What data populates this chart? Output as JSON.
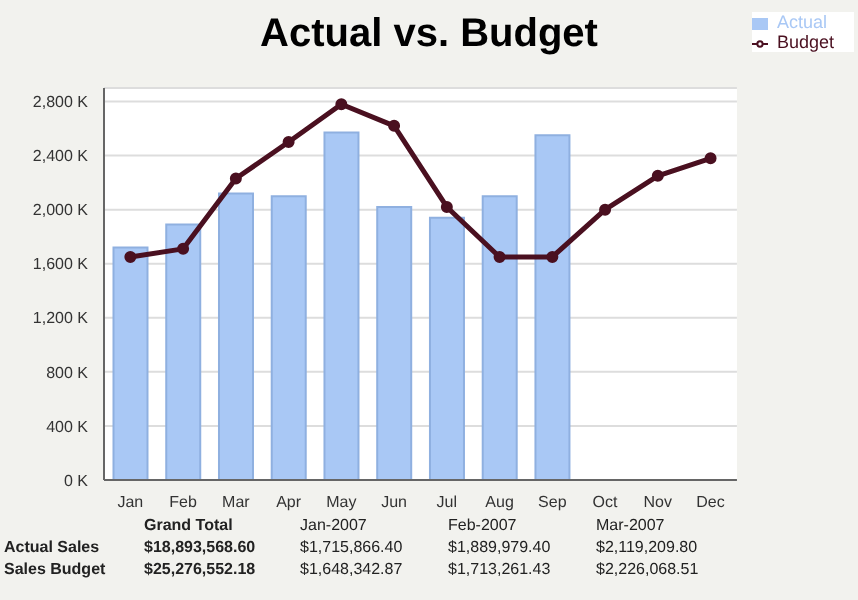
{
  "chart_data": {
    "type": "bar",
    "title": "Actual vs. Budget",
    "categories": [
      "Jan",
      "Feb",
      "Mar",
      "Apr",
      "May",
      "Jun",
      "Jul",
      "Aug",
      "Sep",
      "Oct",
      "Nov",
      "Dec"
    ],
    "series": [
      {
        "name": "Actual",
        "color": "#a9c8f5",
        "values": [
          1720,
          1890,
          2120,
          2100,
          2570,
          2020,
          1940,
          2100,
          2550,
          null,
          null,
          null
        ]
      },
      {
        "name": "Budget",
        "type": "line",
        "color": "#4a1020",
        "values": [
          1650,
          1710,
          2230,
          2500,
          2780,
          2620,
          2020,
          1650,
          1650,
          2000,
          2250,
          2380
        ]
      }
    ],
    "ylim": [
      0,
      2900
    ],
    "yticks": [
      {
        "value": 0,
        "label": "0 K"
      },
      {
        "value": 400,
        "label": "400 K"
      },
      {
        "value": 800,
        "label": "800 K"
      },
      {
        "value": 1200,
        "label": "1,200 K"
      },
      {
        "value": 1600,
        "label": "1,600 K"
      },
      {
        "value": 2000,
        "label": "2,000 K"
      },
      {
        "value": 2400,
        "label": "2,400 K"
      },
      {
        "value": 2800,
        "label": "2,800 K"
      }
    ],
    "grid": "y",
    "legend": "top right",
    "marker": "circle",
    "annotations": [
      "Grand Total",
      "Jan-2007",
      "Feb-2007",
      "Mar-2007",
      "Actual Sales",
      "$18,893,568.60",
      "$1,715,866.40",
      "$1,889,979.40",
      "$2,119,209.80",
      "Sales Budget",
      "$25,276,552.18",
      "$1,648,342.87",
      "$1,713,261.43",
      "$2,226,068.51"
    ]
  }
}
